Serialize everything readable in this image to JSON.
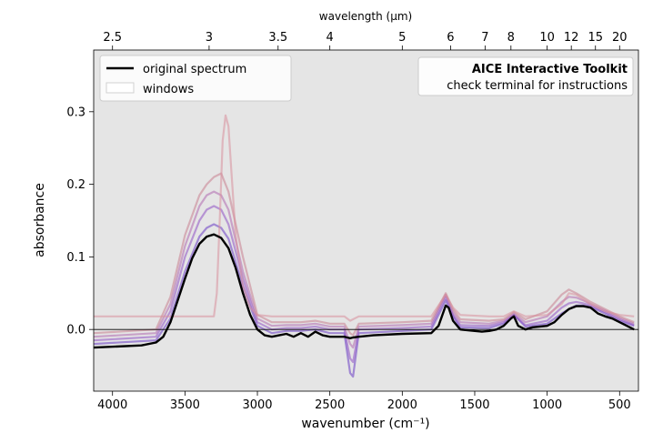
{
  "chart_data": {
    "type": "line",
    "title": "",
    "xlabel": "wavenumber (cm⁻¹)",
    "ylabel": "absorbance",
    "top_axis_label": "wavelength (μm)",
    "xlim": [
      4130,
      370
    ],
    "ylim": [
      -0.085,
      0.385
    ],
    "x_ticks": [
      4000,
      3500,
      3000,
      2500,
      2000,
      1500,
      1000,
      500
    ],
    "y_ticks": [
      0.0,
      0.1,
      0.2,
      0.3
    ],
    "y_tick_labels": [
      "0.0",
      "0.1",
      "0.2",
      "0.3"
    ],
    "top_ticks": [
      2.5,
      3,
      3.5,
      4,
      5,
      6,
      7,
      8,
      10,
      12,
      15,
      20
    ],
    "top_tick_labels": [
      "2.5",
      "3",
      "3.5",
      "4",
      "5",
      "6",
      "7",
      "8",
      "10",
      "12",
      "15",
      "20"
    ],
    "legend": {
      "placement": "top-left",
      "entries": [
        {
          "label": "original spectrum",
          "color": "#000000"
        },
        {
          "label": "windows",
          "color": "#dddddd"
        }
      ]
    },
    "annotation": {
      "title": "AICE Interactive Toolkit",
      "subtitle": "check terminal for instructions",
      "placement": "top-right"
    },
    "background_color": "#e5e5e5",
    "series": [
      {
        "name": "original spectrum",
        "color": "#000000",
        "points": [
          [
            4130,
            -0.025
          ],
          [
            3800,
            -0.022
          ],
          [
            3700,
            -0.018
          ],
          [
            3650,
            -0.01
          ],
          [
            3600,
            0.01
          ],
          [
            3550,
            0.04
          ],
          [
            3500,
            0.07
          ],
          [
            3450,
            0.098
          ],
          [
            3400,
            0.118
          ],
          [
            3350,
            0.128
          ],
          [
            3300,
            0.131
          ],
          [
            3250,
            0.126
          ],
          [
            3200,
            0.112
          ],
          [
            3150,
            0.085
          ],
          [
            3100,
            0.05
          ],
          [
            3050,
            0.02
          ],
          [
            3000,
            0.0
          ],
          [
            2950,
            -0.008
          ],
          [
            2900,
            -0.01
          ],
          [
            2850,
            -0.008
          ],
          [
            2800,
            -0.006
          ],
          [
            2750,
            -0.01
          ],
          [
            2700,
            -0.005
          ],
          [
            2650,
            -0.01
          ],
          [
            2600,
            -0.003
          ],
          [
            2550,
            -0.008
          ],
          [
            2500,
            -0.01
          ],
          [
            2400,
            -0.01
          ],
          [
            2360,
            -0.012
          ],
          [
            2340,
            -0.011
          ],
          [
            2300,
            -0.01
          ],
          [
            2200,
            -0.008
          ],
          [
            2000,
            -0.006
          ],
          [
            1800,
            -0.005
          ],
          [
            1750,
            0.005
          ],
          [
            1700,
            0.033
          ],
          [
            1680,
            0.03
          ],
          [
            1650,
            0.012
          ],
          [
            1600,
            0.0
          ],
          [
            1500,
            -0.002
          ],
          [
            1450,
            -0.003
          ],
          [
            1400,
            -0.002
          ],
          [
            1350,
            0.0
          ],
          [
            1300,
            0.005
          ],
          [
            1250,
            0.015
          ],
          [
            1230,
            0.018
          ],
          [
            1200,
            0.005
          ],
          [
            1150,
            0.0
          ],
          [
            1100,
            0.003
          ],
          [
            1000,
            0.005
          ],
          [
            950,
            0.01
          ],
          [
            900,
            0.02
          ],
          [
            850,
            0.028
          ],
          [
            800,
            0.032
          ],
          [
            750,
            0.032
          ],
          [
            700,
            0.03
          ],
          [
            650,
            0.022
          ],
          [
            600,
            0.018
          ],
          [
            550,
            0.015
          ],
          [
            500,
            0.01
          ],
          [
            450,
            0.005
          ],
          [
            400,
            0.0
          ]
        ]
      },
      {
        "name": "window 1",
        "color": "#6a3dc4",
        "points": [
          [
            4130,
            -0.02
          ],
          [
            3700,
            -0.015
          ],
          [
            3600,
            0.015
          ],
          [
            3500,
            0.08
          ],
          [
            3400,
            0.128
          ],
          [
            3350,
            0.14
          ],
          [
            3300,
            0.145
          ],
          [
            3250,
            0.14
          ],
          [
            3200,
            0.125
          ],
          [
            3100,
            0.06
          ],
          [
            3000,
            0.005
          ],
          [
            2900,
            -0.005
          ],
          [
            2800,
            -0.002
          ],
          [
            2700,
            -0.002
          ],
          [
            2600,
            0.0
          ],
          [
            2500,
            -0.005
          ],
          [
            2400,
            -0.005
          ],
          [
            2360,
            -0.06
          ],
          [
            2340,
            -0.065
          ],
          [
            2300,
            -0.005
          ],
          [
            2000,
            -0.002
          ],
          [
            1800,
            0.0
          ],
          [
            1700,
            0.04
          ],
          [
            1650,
            0.018
          ],
          [
            1600,
            0.003
          ],
          [
            1400,
            0.002
          ],
          [
            1300,
            0.008
          ],
          [
            1230,
            0.02
          ],
          [
            1150,
            0.004
          ],
          [
            1000,
            0.008
          ],
          [
            900,
            0.022
          ],
          [
            850,
            0.028
          ],
          [
            800,
            0.033
          ],
          [
            750,
            0.033
          ],
          [
            700,
            0.031
          ],
          [
            600,
            0.022
          ],
          [
            500,
            0.012
          ],
          [
            400,
            0.005
          ]
        ]
      },
      {
        "name": "window 2",
        "color": "#8f52c4",
        "points": [
          [
            4130,
            -0.015
          ],
          [
            3700,
            -0.01
          ],
          [
            3600,
            0.025
          ],
          [
            3500,
            0.1
          ],
          [
            3400,
            0.15
          ],
          [
            3350,
            0.165
          ],
          [
            3300,
            0.17
          ],
          [
            3250,
            0.165
          ],
          [
            3200,
            0.145
          ],
          [
            3100,
            0.07
          ],
          [
            3000,
            0.01
          ],
          [
            2900,
            0.0
          ],
          [
            2800,
            0.002
          ],
          [
            2700,
            0.002
          ],
          [
            2600,
            0.004
          ],
          [
            2500,
            0.0
          ],
          [
            2400,
            0.0
          ],
          [
            2360,
            -0.04
          ],
          [
            2340,
            -0.045
          ],
          [
            2300,
            0.0
          ],
          [
            2000,
            0.002
          ],
          [
            1800,
            0.004
          ],
          [
            1700,
            0.045
          ],
          [
            1650,
            0.02
          ],
          [
            1600,
            0.006
          ],
          [
            1400,
            0.005
          ],
          [
            1300,
            0.01
          ],
          [
            1230,
            0.02
          ],
          [
            1150,
            0.006
          ],
          [
            1000,
            0.012
          ],
          [
            900,
            0.03
          ],
          [
            850,
            0.036
          ],
          [
            800,
            0.038
          ],
          [
            750,
            0.036
          ],
          [
            700,
            0.033
          ],
          [
            600,
            0.024
          ],
          [
            500,
            0.014
          ],
          [
            400,
            0.006
          ]
        ]
      },
      {
        "name": "window 3",
        "color": "#b06ab0",
        "points": [
          [
            4130,
            -0.01
          ],
          [
            3700,
            -0.005
          ],
          [
            3600,
            0.035
          ],
          [
            3500,
            0.115
          ],
          [
            3400,
            0.17
          ],
          [
            3350,
            0.185
          ],
          [
            3300,
            0.19
          ],
          [
            3250,
            0.185
          ],
          [
            3200,
            0.165
          ],
          [
            3100,
            0.08
          ],
          [
            3000,
            0.015
          ],
          [
            2900,
            0.005
          ],
          [
            2800,
            0.006
          ],
          [
            2700,
            0.006
          ],
          [
            2600,
            0.008
          ],
          [
            2500,
            0.004
          ],
          [
            2400,
            0.004
          ],
          [
            2360,
            -0.02
          ],
          [
            2340,
            -0.025
          ],
          [
            2300,
            0.004
          ],
          [
            2000,
            0.006
          ],
          [
            1800,
            0.008
          ],
          [
            1700,
            0.048
          ],
          [
            1650,
            0.024
          ],
          [
            1600,
            0.01
          ],
          [
            1400,
            0.008
          ],
          [
            1300,
            0.012
          ],
          [
            1230,
            0.022
          ],
          [
            1150,
            0.01
          ],
          [
            1000,
            0.018
          ],
          [
            900,
            0.038
          ],
          [
            850,
            0.045
          ],
          [
            800,
            0.044
          ],
          [
            750,
            0.04
          ],
          [
            700,
            0.035
          ],
          [
            600,
            0.026
          ],
          [
            500,
            0.016
          ],
          [
            400,
            0.008
          ]
        ]
      },
      {
        "name": "window 4",
        "color": "#c88090",
        "points": [
          [
            4130,
            -0.005
          ],
          [
            3700,
            0.0
          ],
          [
            3600,
            0.045
          ],
          [
            3500,
            0.13
          ],
          [
            3400,
            0.185
          ],
          [
            3350,
            0.2
          ],
          [
            3300,
            0.21
          ],
          [
            3250,
            0.215
          ],
          [
            3200,
            0.19
          ],
          [
            3100,
            0.1
          ],
          [
            3000,
            0.02
          ],
          [
            2900,
            0.01
          ],
          [
            2800,
            0.01
          ],
          [
            2700,
            0.01
          ],
          [
            2600,
            0.012
          ],
          [
            2500,
            0.008
          ],
          [
            2400,
            0.008
          ],
          [
            2360,
            -0.005
          ],
          [
            2340,
            -0.008
          ],
          [
            2300,
            0.008
          ],
          [
            2000,
            0.01
          ],
          [
            1800,
            0.012
          ],
          [
            1700,
            0.05
          ],
          [
            1650,
            0.028
          ],
          [
            1600,
            0.014
          ],
          [
            1400,
            0.012
          ],
          [
            1300,
            0.014
          ],
          [
            1230,
            0.024
          ],
          [
            1150,
            0.014
          ],
          [
            1000,
            0.025
          ],
          [
            900,
            0.048
          ],
          [
            850,
            0.055
          ],
          [
            800,
            0.05
          ],
          [
            750,
            0.044
          ],
          [
            700,
            0.038
          ],
          [
            600,
            0.028
          ],
          [
            500,
            0.018
          ],
          [
            400,
            0.01
          ]
        ]
      },
      {
        "name": "window 5",
        "color": "#d9909c",
        "points": [
          [
            4130,
            0.018
          ],
          [
            3800,
            0.018
          ],
          [
            3700,
            0.018
          ],
          [
            3600,
            0.018
          ],
          [
            3500,
            0.018
          ],
          [
            3400,
            0.018
          ],
          [
            3300,
            0.018
          ],
          [
            3280,
            0.05
          ],
          [
            3260,
            0.15
          ],
          [
            3240,
            0.26
          ],
          [
            3220,
            0.295
          ],
          [
            3200,
            0.28
          ],
          [
            3180,
            0.22
          ],
          [
            3150,
            0.13
          ],
          [
            3100,
            0.06
          ],
          [
            3050,
            0.03
          ],
          [
            3000,
            0.02
          ],
          [
            2900,
            0.018
          ],
          [
            2700,
            0.018
          ],
          [
            2500,
            0.018
          ],
          [
            2400,
            0.018
          ],
          [
            2360,
            0.012
          ],
          [
            2300,
            0.018
          ],
          [
            2000,
            0.018
          ],
          [
            1800,
            0.018
          ],
          [
            1700,
            0.048
          ],
          [
            1650,
            0.03
          ],
          [
            1600,
            0.02
          ],
          [
            1400,
            0.018
          ],
          [
            1300,
            0.018
          ],
          [
            1230,
            0.025
          ],
          [
            1150,
            0.018
          ],
          [
            1000,
            0.02
          ],
          [
            900,
            0.035
          ],
          [
            850,
            0.05
          ],
          [
            800,
            0.048
          ],
          [
            700,
            0.035
          ],
          [
            600,
            0.025
          ],
          [
            500,
            0.02
          ],
          [
            400,
            0.018
          ]
        ]
      }
    ]
  }
}
